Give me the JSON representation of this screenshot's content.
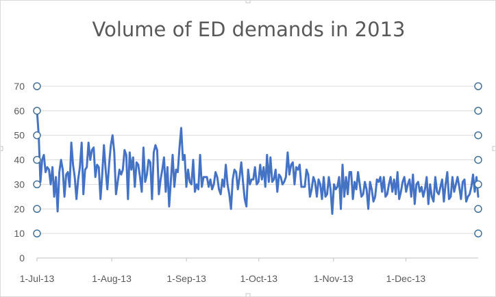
{
  "chart_data": {
    "type": "line",
    "title": "Volume of ED demands in 2013",
    "xlabel": "",
    "ylabel": "",
    "x_start": "2013-07-01",
    "x_end": "2013-12-31",
    "x_tick_labels": [
      "1-Jul-13",
      "1-Aug-13",
      "1-Sep-13",
      "1-Oct-13",
      "1-Nov-13",
      "1-Dec-13"
    ],
    "ylim": [
      0,
      70
    ],
    "y_ticks": [
      0,
      10,
      20,
      30,
      40,
      50,
      60,
      70
    ],
    "grid": true,
    "legend": "none",
    "colors": {
      "line": "#4472c4",
      "grid": "#d9d9d9",
      "text": "#595959"
    },
    "series": [
      {
        "values": [
          60,
          50,
          31,
          40,
          42,
          35,
          37,
          36,
          30,
          37,
          25,
          33,
          19,
          35,
          40,
          36,
          25,
          34,
          35,
          29,
          47,
          38,
          33,
          24,
          32,
          37,
          47,
          26,
          36,
          37,
          47,
          40,
          44,
          45,
          33,
          38,
          37,
          24,
          34,
          46,
          36,
          28,
          38,
          46,
          50,
          43,
          26,
          31,
          36,
          34,
          36,
          44,
          42,
          24,
          43,
          36,
          41,
          29,
          39,
          38,
          33,
          27,
          45,
          31,
          34,
          40,
          39,
          24,
          43,
          46,
          44,
          26,
          32,
          36,
          41,
          27,
          37,
          21,
          32,
          42,
          29,
          36,
          35,
          45,
          53,
          40,
          42,
          29,
          36,
          31,
          30,
          40,
          27,
          30,
          28,
          42,
          29,
          33,
          33,
          33,
          29,
          32,
          28,
          30,
          35,
          33,
          28,
          26,
          32,
          29,
          38,
          30,
          26,
          20,
          32,
          36,
          35,
          28,
          33,
          39,
          31,
          24,
          21,
          36,
          30,
          32,
          32,
          37,
          30,
          31,
          38,
          32,
          37,
          29,
          42,
          31,
          41,
          31,
          32,
          36,
          27,
          34,
          33,
          30,
          31,
          33,
          43,
          34,
          38,
          39,
          30,
          37,
          36,
          38,
          29,
          29,
          29,
          36,
          34,
          25,
          28,
          33,
          31,
          25,
          32,
          30,
          24,
          33,
          25,
          26,
          33,
          28,
          18,
          30,
          28,
          29,
          33,
          20,
          38,
          25,
          33,
          26,
          35,
          35,
          24,
          31,
          28,
          35,
          30,
          25,
          26,
          31,
          28,
          20,
          31,
          28,
          23,
          25,
          32,
          31,
          33,
          27,
          33,
          25,
          26,
          30,
          33,
          27,
          32,
          26,
          35,
          24,
          27,
          31,
          33,
          27,
          30,
          32,
          25,
          34,
          22,
          30,
          31,
          27,
          29,
          25,
          28,
          33,
          22,
          30,
          25,
          23,
          33,
          27,
          26,
          29,
          32,
          23,
          30,
          35,
          24,
          25,
          33,
          27,
          30,
          33,
          29,
          24,
          31,
          32,
          23,
          25,
          26,
          29,
          34,
          27,
          33,
          25
        ]
      }
    ]
  }
}
